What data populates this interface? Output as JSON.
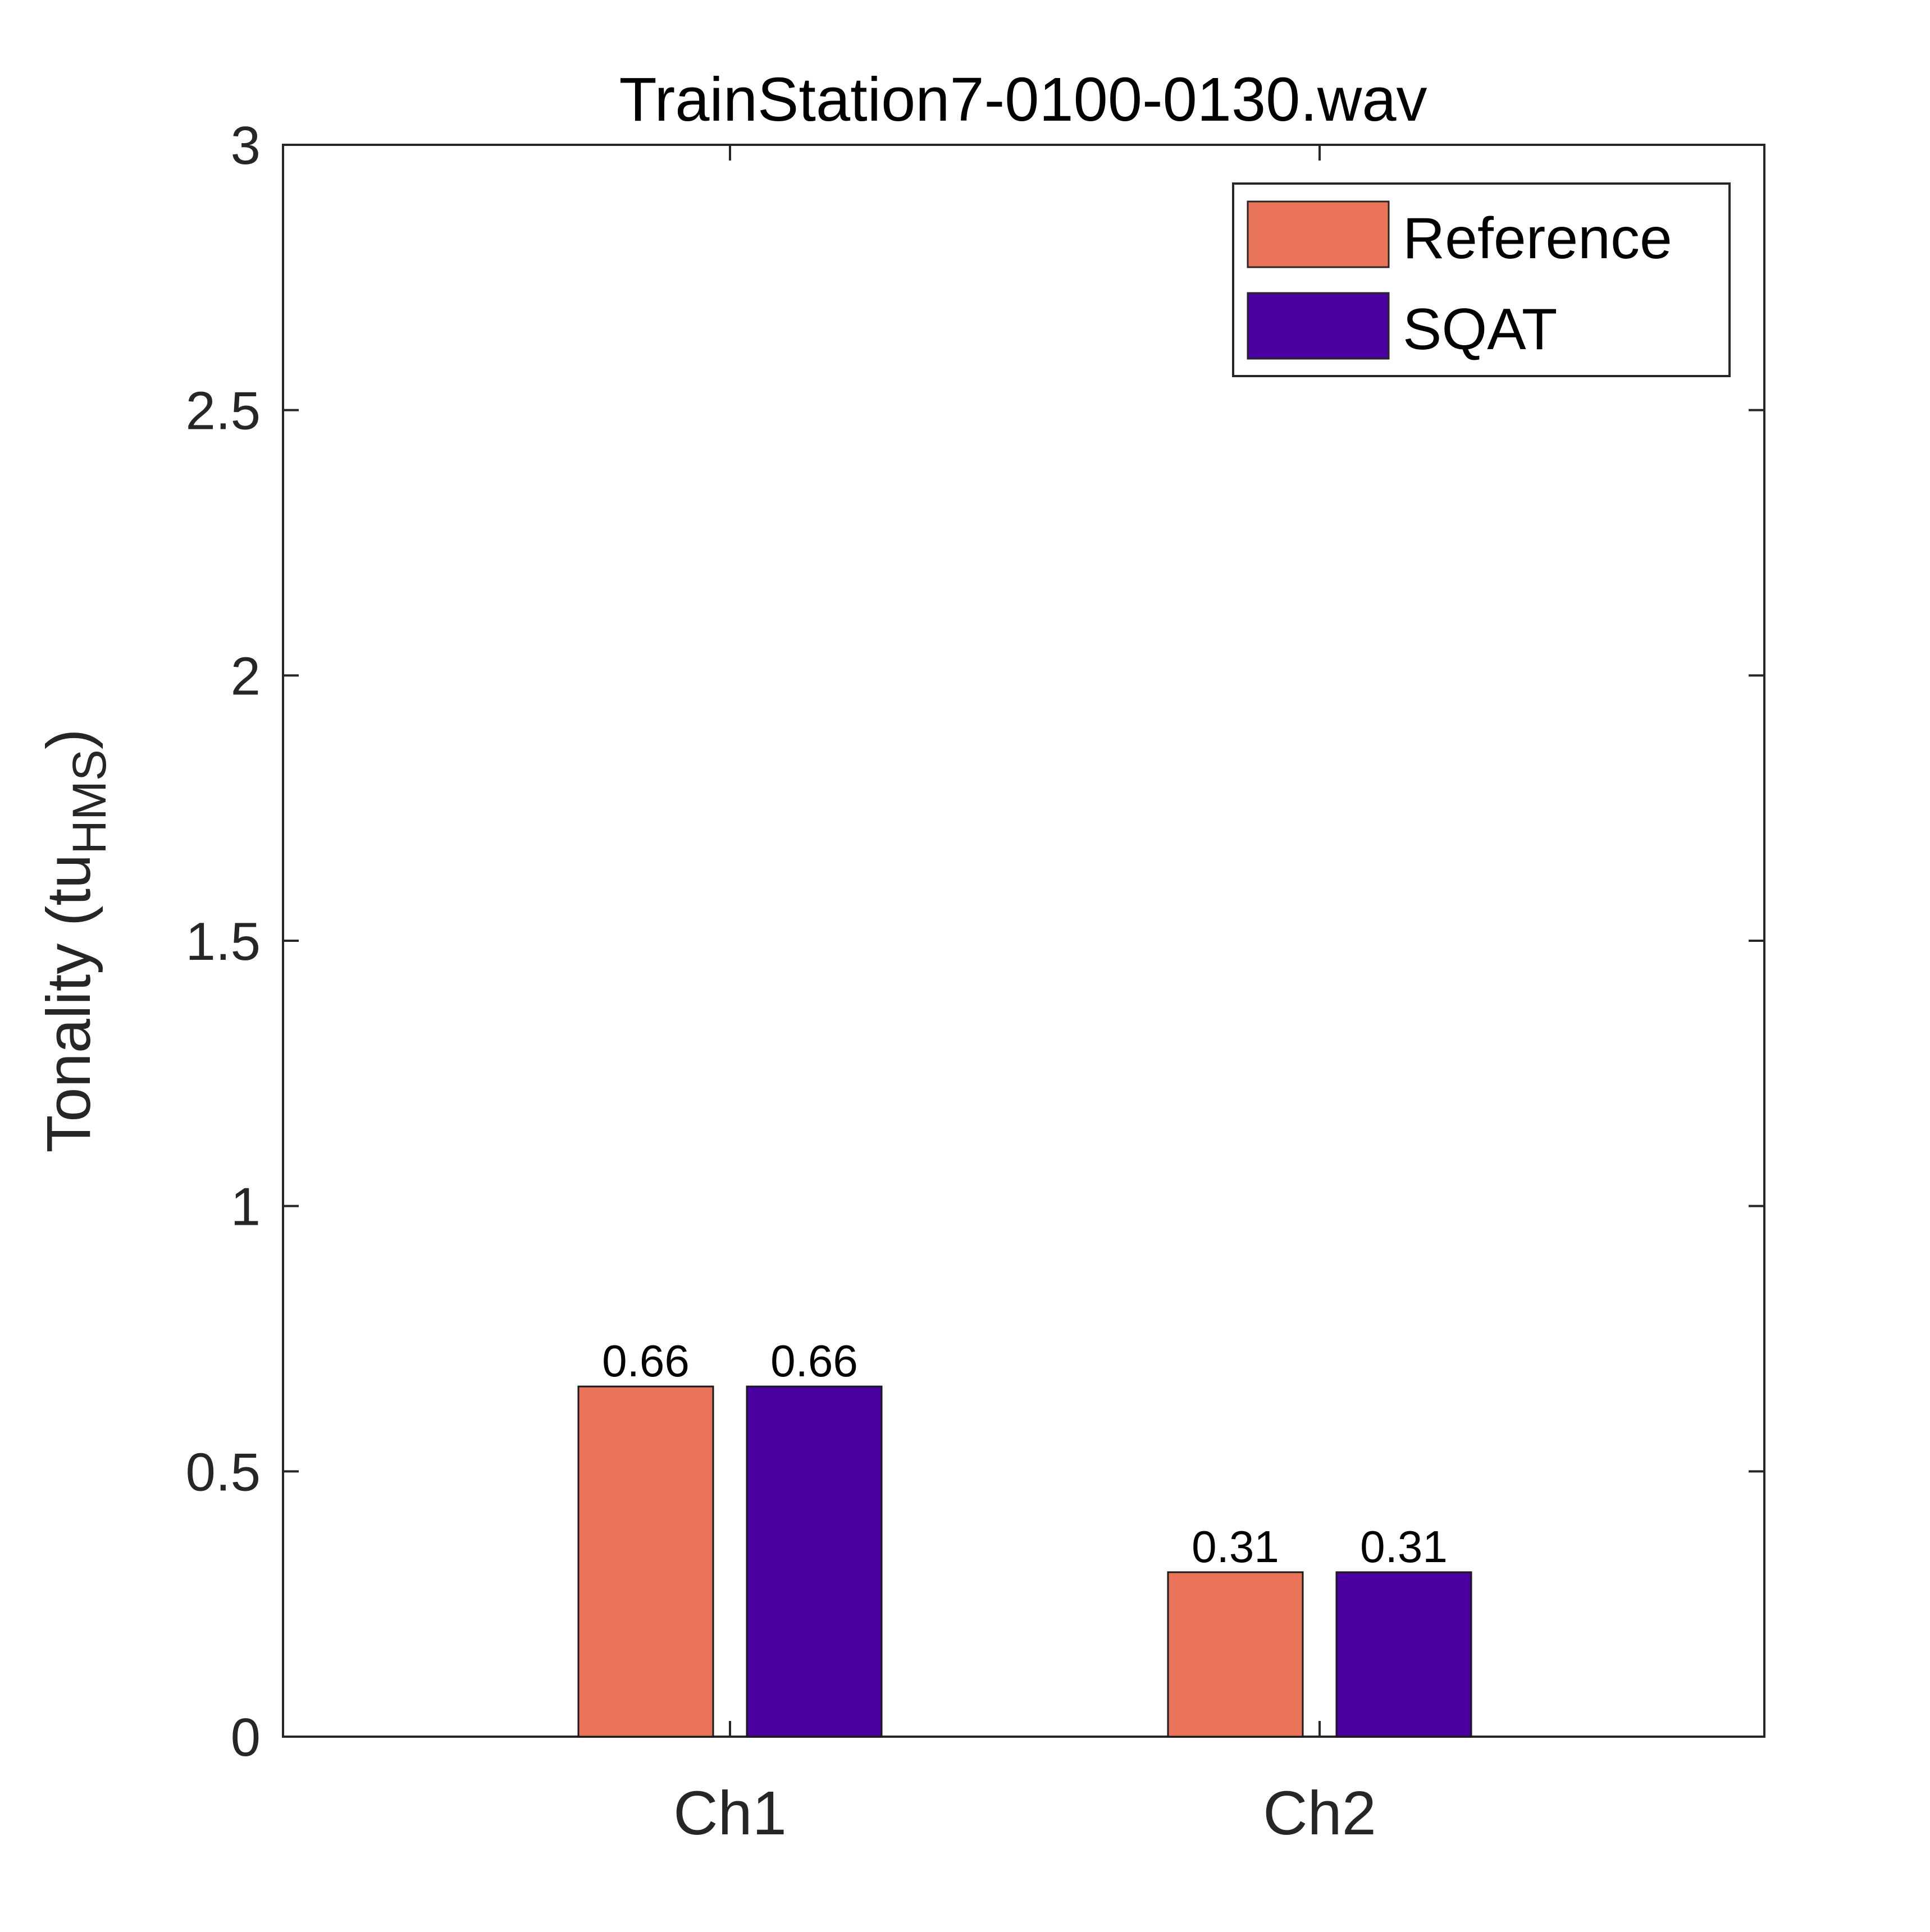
{
  "chart_data": {
    "type": "bar",
    "title": "TrainStation7-0100-0130.wav",
    "xlabel": "",
    "ylabel": "Tonality (tu",
    "ylabel_subscript": "HMS",
    "ylabel_close": ")",
    "categories": [
      "Ch1",
      "Ch2"
    ],
    "series": [
      {
        "name": "Reference",
        "values": [
          0.66,
          0.31
        ],
        "labels": [
          "0.66",
          "0.31"
        ],
        "color": "#E9745A"
      },
      {
        "name": "SQAT",
        "values": [
          0.66,
          0.31
        ],
        "labels": [
          "0.66",
          "0.31"
        ],
        "color": "#4B00A0"
      }
    ],
    "ylim": [
      0,
      3
    ],
    "yticks": [
      0,
      0.5,
      1,
      1.5,
      2,
      2.5,
      3
    ],
    "ytick_labels": [
      "0",
      "0.5",
      "1",
      "1.5",
      "2",
      "2.5",
      "3"
    ],
    "grid": false,
    "legend_position": "top-right"
  }
}
